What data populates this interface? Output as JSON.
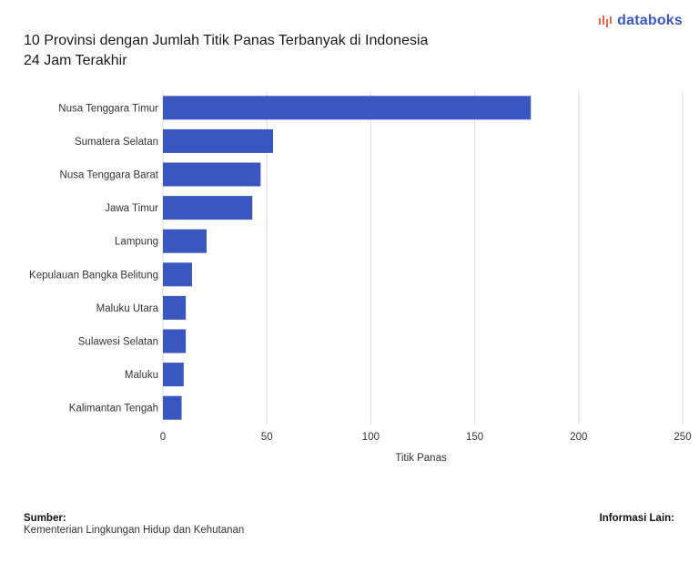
{
  "header": {
    "title_line1": "10 Provinsi dengan Jumlah Titik Panas Terbanyak di Indonesia",
    "title_line2": "24 Jam Terakhir",
    "logo_text": "databoks"
  },
  "chart_data": {
    "type": "bar",
    "orientation": "horizontal",
    "categories": [
      "Nusa Tenggara Timur",
      "Sumatera Selatan",
      "Nusa Tenggara Barat",
      "Jawa Timur",
      "Lampung",
      "Kepulauan Bangka Belitung",
      "Maluku Utara",
      "Sulawesi Selatan",
      "Maluku",
      "Kalimantan Tengah"
    ],
    "values": [
      177,
      53,
      47,
      43,
      21,
      14,
      11,
      11,
      10,
      9
    ],
    "xlabel": "Titik Panas",
    "xlim": [
      0,
      250
    ],
    "xticks": [
      0,
      50,
      100,
      150,
      200,
      250
    ],
    "grid": "vertical",
    "legend": "none",
    "bar_color": "#3a56c0"
  },
  "footer": {
    "source_label": "Sumber:",
    "source_value": "Kementerian Lingkungan Hidup dan Kehutanan",
    "info_label": "Informasi Lain:"
  },
  "colors": {
    "bar": "#3a56c0",
    "logo_accent": "#e8664a",
    "logo_text": "#3a56c8",
    "grid": "#dcdcdc"
  }
}
